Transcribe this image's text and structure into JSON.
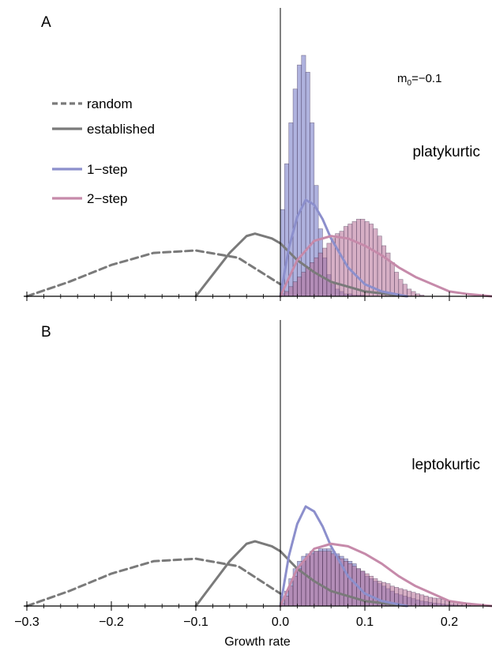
{
  "xlabel": "Growth rate",
  "xlim": [
    -0.3,
    0.25
  ],
  "x_tick_labels": [
    "−0.3",
    "−0.2",
    "−0.1",
    "0.0",
    "0.1",
    "0.2"
  ],
  "x_tick_values": [
    -0.3,
    -0.2,
    -0.1,
    0.0,
    0.1,
    0.2
  ],
  "legend": {
    "random": "random",
    "established": "established",
    "one_step": "1−step",
    "two_step": "2−step"
  },
  "colors": {
    "curve": "#7a7a7a",
    "one_step": "#8c8fcc",
    "two_step": "#c68aaa",
    "hist_one_step": "#6e72c2",
    "hist_two_step": "#b46e96",
    "hist_edge": "#3a2a4a"
  },
  "annotation": {
    "m0_prefix": "m",
    "m0_sub": "0",
    "m0_value": "=−0.1"
  },
  "chart_data": [
    {
      "type": "area",
      "panel_label": "A",
      "title": "platykurtic",
      "xlim": [
        -0.3,
        0.25
      ],
      "ylim": [
        0,
        1
      ],
      "series": [
        {
          "name": "random",
          "style": "dashed",
          "x": [
            -0.3,
            -0.25,
            -0.2,
            -0.15,
            -0.1,
            -0.05,
            0.0
          ],
          "y": [
            0.0,
            0.06,
            0.13,
            0.18,
            0.19,
            0.16,
            0.05
          ]
        },
        {
          "name": "established",
          "style": "solid",
          "x": [
            -0.1,
            -0.08,
            -0.06,
            -0.04,
            -0.03,
            -0.01,
            0.0,
            0.02,
            0.04,
            0.06,
            0.1,
            0.15
          ],
          "y": [
            0.0,
            0.09,
            0.18,
            0.25,
            0.26,
            0.24,
            0.22,
            0.15,
            0.1,
            0.06,
            0.02,
            0.0
          ]
        },
        {
          "name": "1−step",
          "style": "solid",
          "x": [
            0.0,
            0.01,
            0.02,
            0.03,
            0.04,
            0.05,
            0.06,
            0.08,
            0.1,
            0.12,
            0.15
          ],
          "y": [
            0.0,
            0.2,
            0.33,
            0.4,
            0.38,
            0.32,
            0.24,
            0.12,
            0.05,
            0.02,
            0.0
          ]
        },
        {
          "name": "2−step",
          "style": "solid",
          "x": [
            0.0,
            0.02,
            0.04,
            0.06,
            0.08,
            0.1,
            0.12,
            0.14,
            0.16,
            0.18,
            0.2,
            0.22,
            0.25
          ],
          "y": [
            0.0,
            0.15,
            0.23,
            0.25,
            0.24,
            0.21,
            0.17,
            0.12,
            0.08,
            0.05,
            0.02,
            0.01,
            0.0
          ]
        }
      ],
      "histograms": [
        {
          "name": "1−step",
          "bin_width": 0.005,
          "start": 0.0,
          "heights": [
            0.36,
            0.55,
            0.72,
            0.86,
            0.96,
            1.0,
            0.93,
            0.72,
            0.46,
            0.28,
            0.16,
            0.09,
            0.05,
            0.03,
            0.02,
            0.01,
            0.01,
            0.005,
            0.005,
            0.005
          ]
        },
        {
          "name": "2−step",
          "bin_width": 0.005,
          "start": 0.0,
          "heights": [
            0.01,
            0.02,
            0.04,
            0.06,
            0.08,
            0.1,
            0.12,
            0.14,
            0.16,
            0.18,
            0.2,
            0.22,
            0.24,
            0.26,
            0.27,
            0.29,
            0.3,
            0.31,
            0.32,
            0.32,
            0.31,
            0.3,
            0.28,
            0.25,
            0.21,
            0.18,
            0.14,
            0.1,
            0.07,
            0.05,
            0.03,
            0.02,
            0.01,
            0.005
          ]
        }
      ]
    },
    {
      "type": "area",
      "panel_label": "B",
      "title": "leptokurtic",
      "xlim": [
        -0.3,
        0.25
      ],
      "ylim": [
        0,
        1
      ],
      "series": [
        {
          "name": "random",
          "style": "dashed",
          "x": [
            -0.3,
            -0.25,
            -0.2,
            -0.15,
            -0.1,
            -0.05,
            0.0
          ],
          "y": [
            0.0,
            0.06,
            0.13,
            0.18,
            0.19,
            0.16,
            0.05
          ]
        },
        {
          "name": "established",
          "style": "solid",
          "x": [
            -0.1,
            -0.08,
            -0.06,
            -0.04,
            -0.03,
            -0.01,
            0.0,
            0.02,
            0.04,
            0.06,
            0.1,
            0.15
          ],
          "y": [
            0.0,
            0.09,
            0.18,
            0.25,
            0.26,
            0.24,
            0.22,
            0.15,
            0.1,
            0.06,
            0.02,
            0.0
          ]
        },
        {
          "name": "1−step",
          "style": "solid",
          "x": [
            0.0,
            0.01,
            0.02,
            0.03,
            0.04,
            0.05,
            0.06,
            0.08,
            0.1,
            0.12,
            0.15
          ],
          "y": [
            0.0,
            0.2,
            0.33,
            0.4,
            0.38,
            0.32,
            0.24,
            0.12,
            0.05,
            0.02,
            0.0
          ]
        },
        {
          "name": "2−step",
          "style": "solid",
          "x": [
            0.0,
            0.02,
            0.04,
            0.06,
            0.08,
            0.1,
            0.12,
            0.14,
            0.16,
            0.18,
            0.2,
            0.22,
            0.25
          ],
          "y": [
            0.0,
            0.15,
            0.23,
            0.25,
            0.24,
            0.21,
            0.17,
            0.12,
            0.08,
            0.05,
            0.02,
            0.01,
            0.0
          ]
        }
      ],
      "histograms": [
        {
          "name": "1−step",
          "bin_width": 0.005,
          "start": 0.0,
          "heights": [
            0.02,
            0.06,
            0.11,
            0.15,
            0.18,
            0.2,
            0.21,
            0.22,
            0.22,
            0.23,
            0.23,
            0.23,
            0.22,
            0.21,
            0.2,
            0.19,
            0.18,
            0.17,
            0.15,
            0.14,
            0.12,
            0.11,
            0.1,
            0.09,
            0.08,
            0.07,
            0.06,
            0.05,
            0.045,
            0.04,
            0.035,
            0.03,
            0.025,
            0.02,
            0.018,
            0.015,
            0.012,
            0.01,
            0.008,
            0.006,
            0.005,
            0.004,
            0.003,
            0.002,
            0.002,
            0.001,
            0.001,
            0.001,
            0.0,
            0.0
          ]
        },
        {
          "name": "2−step",
          "bin_width": 0.005,
          "start": 0.0,
          "heights": [
            0.01,
            0.04,
            0.08,
            0.12,
            0.15,
            0.18,
            0.2,
            0.21,
            0.22,
            0.22,
            0.22,
            0.22,
            0.21,
            0.2,
            0.19,
            0.18,
            0.17,
            0.16,
            0.15,
            0.14,
            0.13,
            0.12,
            0.11,
            0.1,
            0.095,
            0.09,
            0.08,
            0.075,
            0.07,
            0.065,
            0.06,
            0.055,
            0.05,
            0.045,
            0.04,
            0.035,
            0.032,
            0.03,
            0.027,
            0.024,
            0.021,
            0.018,
            0.016,
            0.014,
            0.012,
            0.01,
            0.008,
            0.006,
            0.005,
            0.004
          ]
        }
      ]
    }
  ]
}
